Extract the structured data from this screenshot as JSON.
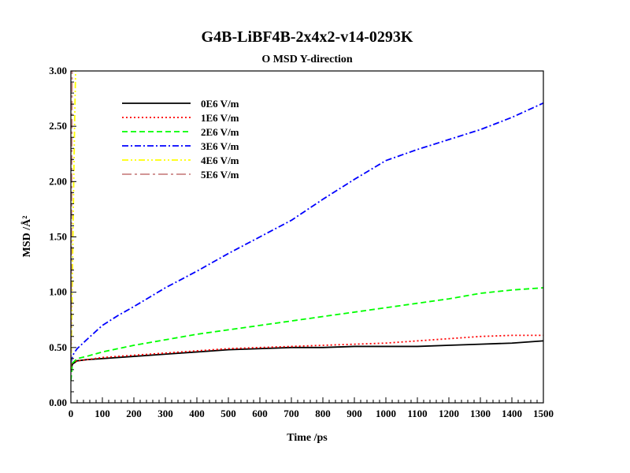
{
  "chart_data": {
    "type": "line",
    "title": "G4B-LiBF4B-2x4x2-v14-0293K",
    "subtitle": "O MSD Y-direction",
    "xlabel": "Time /ps",
    "ylabel": "MSD /Å²",
    "xlim": [
      0,
      1500
    ],
    "ylim": [
      0,
      3
    ],
    "x_ticks": [
      0,
      100,
      200,
      300,
      400,
      500,
      600,
      700,
      800,
      900,
      1000,
      1100,
      1200,
      1300,
      1400,
      1500
    ],
    "y_ticks": [
      "0.00",
      "0.50",
      "1.00",
      "1.50",
      "2.00",
      "2.50",
      "3.00"
    ],
    "legend_position": "top-left",
    "series": [
      {
        "name": "0E6 V/m",
        "color": "#000000",
        "dash": "solid",
        "points": [
          [
            0,
            0.3
          ],
          [
            5,
            0.35
          ],
          [
            20,
            0.38
          ],
          [
            50,
            0.39
          ],
          [
            100,
            0.4
          ],
          [
            200,
            0.42
          ],
          [
            300,
            0.44
          ],
          [
            400,
            0.46
          ],
          [
            500,
            0.48
          ],
          [
            600,
            0.49
          ],
          [
            700,
            0.5
          ],
          [
            800,
            0.5
          ],
          [
            900,
            0.51
          ],
          [
            1000,
            0.51
          ],
          [
            1100,
            0.51
          ],
          [
            1200,
            0.52
          ],
          [
            1300,
            0.53
          ],
          [
            1400,
            0.54
          ],
          [
            1500,
            0.56
          ]
        ]
      },
      {
        "name": "1E6 V/m",
        "color": "#ff0000",
        "dash": "dotted",
        "points": [
          [
            0,
            0.32
          ],
          [
            5,
            0.36
          ],
          [
            20,
            0.38
          ],
          [
            50,
            0.39
          ],
          [
            100,
            0.41
          ],
          [
            200,
            0.43
          ],
          [
            300,
            0.45
          ],
          [
            400,
            0.47
          ],
          [
            500,
            0.49
          ],
          [
            600,
            0.5
          ],
          [
            700,
            0.51
          ],
          [
            800,
            0.52
          ],
          [
            900,
            0.53
          ],
          [
            1000,
            0.54
          ],
          [
            1100,
            0.56
          ],
          [
            1200,
            0.58
          ],
          [
            1300,
            0.6
          ],
          [
            1400,
            0.61
          ],
          [
            1500,
            0.61
          ]
        ]
      },
      {
        "name": "2E6 V/m",
        "color": "#00ff00",
        "dash": "dashed",
        "points": [
          [
            0,
            0.2
          ],
          [
            5,
            0.36
          ],
          [
            20,
            0.4
          ],
          [
            50,
            0.42
          ],
          [
            100,
            0.46
          ],
          [
            200,
            0.52
          ],
          [
            300,
            0.57
          ],
          [
            400,
            0.62
          ],
          [
            500,
            0.66
          ],
          [
            600,
            0.7
          ],
          [
            700,
            0.74
          ],
          [
            800,
            0.78
          ],
          [
            900,
            0.82
          ],
          [
            1000,
            0.86
          ],
          [
            1100,
            0.9
          ],
          [
            1200,
            0.94
          ],
          [
            1300,
            0.99
          ],
          [
            1400,
            1.02
          ],
          [
            1500,
            1.04
          ]
        ]
      },
      {
        "name": "3E6 V/m",
        "color": "#0000ff",
        "dash": "dashdot",
        "points": [
          [
            0,
            0.36
          ],
          [
            5,
            0.42
          ],
          [
            10,
            0.45
          ],
          [
            20,
            0.49
          ],
          [
            50,
            0.57
          ],
          [
            100,
            0.7
          ],
          [
            150,
            0.79
          ],
          [
            200,
            0.87
          ],
          [
            300,
            1.04
          ],
          [
            400,
            1.19
          ],
          [
            500,
            1.35
          ],
          [
            600,
            1.5
          ],
          [
            700,
            1.65
          ],
          [
            800,
            1.84
          ],
          [
            900,
            2.02
          ],
          [
            1000,
            2.19
          ],
          [
            1100,
            2.29
          ],
          [
            1200,
            2.38
          ],
          [
            1300,
            2.47
          ],
          [
            1400,
            2.58
          ],
          [
            1500,
            2.71
          ]
        ]
      },
      {
        "name": "4E6 V/m",
        "color": "#ffff00",
        "dash": "dashdotdot",
        "points": [
          [
            0,
            0.3
          ],
          [
            3,
            0.8
          ],
          [
            6,
            1.4
          ],
          [
            9,
            2.0
          ],
          [
            12,
            2.55
          ],
          [
            15,
            3.0
          ]
        ]
      },
      {
        "name": "5E6 V/m",
        "color": "#cc8888",
        "dash": "longdashdot",
        "points": [
          [
            0,
            0.35
          ],
          [
            1,
            0.9
          ],
          [
            2,
            1.6
          ],
          [
            3,
            2.3
          ],
          [
            4,
            3.0
          ]
        ]
      }
    ]
  }
}
